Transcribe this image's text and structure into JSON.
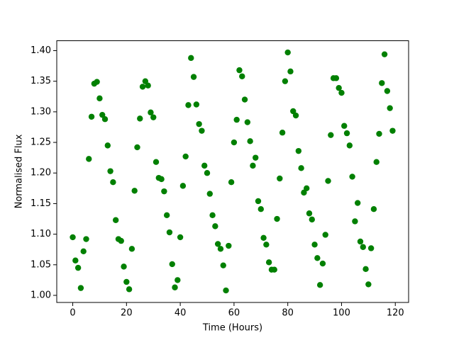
{
  "chart_data": {
    "type": "scatter",
    "x_label": "Time (Hours)",
    "y_label": "Normalised Flux",
    "color": "#008000",
    "x": [
      0,
      1,
      2,
      3,
      4,
      5,
      6,
      7,
      8,
      9,
      10,
      11,
      12,
      13,
      14,
      15,
      16,
      17,
      18,
      19,
      20,
      21,
      22,
      23,
      24,
      25,
      26,
      27,
      28,
      29,
      30,
      31,
      32,
      33,
      34,
      35,
      36,
      37,
      38,
      39,
      40,
      41,
      42,
      43,
      44,
      45,
      46,
      47,
      48,
      49,
      50,
      51,
      52,
      53,
      54,
      55,
      56,
      57,
      58,
      59,
      60,
      61,
      62,
      63,
      64,
      65,
      66,
      67,
      68,
      69,
      70,
      71,
      72,
      73,
      74,
      75,
      76,
      77,
      78,
      79,
      80,
      81,
      82,
      83,
      84,
      85,
      86,
      87,
      88,
      89,
      90,
      91,
      92,
      93,
      94,
      95,
      96,
      97,
      98,
      99,
      100,
      101,
      102,
      103,
      104,
      105,
      106,
      107,
      108,
      109,
      110,
      111,
      112,
      113,
      114,
      115,
      116,
      117,
      118,
      119
    ],
    "values": [
      1.095,
      1.057,
      1.045,
      1.012,
      1.072,
      1.092,
      1.223,
      1.292,
      1.346,
      1.349,
      1.322,
      1.295,
      1.288,
      1.245,
      1.203,
      1.185,
      1.123,
      1.092,
      1.089,
      1.047,
      1.022,
      1.01,
      1.076,
      1.171,
      1.242,
      1.289,
      1.341,
      1.35,
      1.343,
      1.299,
      1.291,
      1.218,
      1.192,
      1.19,
      1.17,
      1.131,
      1.103,
      1.051,
      1.013,
      1.025,
      1.095,
      1.179,
      1.227,
      1.311,
      1.388,
      1.357,
      1.312,
      1.28,
      1.269,
      1.212,
      1.2,
      1.166,
      1.131,
      1.113,
      1.084,
      1.076,
      1.049,
      1.008,
      1.081,
      1.185,
      1.25,
      1.287,
      1.368,
      1.358,
      1.32,
      1.283,
      1.252,
      1.212,
      1.225,
      1.154,
      1.141,
      1.094,
      1.083,
      1.054,
      1.042,
      1.042,
      1.125,
      1.191,
      1.266,
      1.35,
      1.397,
      1.366,
      1.301,
      1.294,
      1.236,
      1.208,
      1.168,
      1.175,
      1.134,
      1.124,
      1.083,
      1.061,
      1.017,
      1.052,
      1.099,
      1.187,
      1.262,
      1.355,
      1.355,
      1.339,
      1.331,
      1.277,
      1.265,
      1.245,
      1.194,
      1.121,
      1.151,
      1.088,
      1.079,
      1.043,
      1.018,
      1.077,
      1.141,
      1.218,
      1.264,
      1.347,
      1.394,
      1.334,
      1.306,
      1.269
    ],
    "xlim": [
      -5.95,
      124.95
    ],
    "ylim": [
      0.9884,
      1.4162
    ],
    "xticks": [
      0,
      20,
      40,
      60,
      80,
      100,
      120
    ],
    "yticks": [
      {
        "value": 1.0,
        "label": "1.00"
      },
      {
        "value": 1.05,
        "label": "1.05"
      },
      {
        "value": 1.1,
        "label": "1.10"
      },
      {
        "value": 1.15,
        "label": "1.15"
      },
      {
        "value": 1.2,
        "label": "1.20"
      },
      {
        "value": 1.25,
        "label": "1.25"
      },
      {
        "value": 1.3,
        "label": "1.30"
      },
      {
        "value": 1.35,
        "label": "1.35"
      },
      {
        "value": 1.4,
        "label": "1.40"
      }
    ],
    "grid": false
  }
}
